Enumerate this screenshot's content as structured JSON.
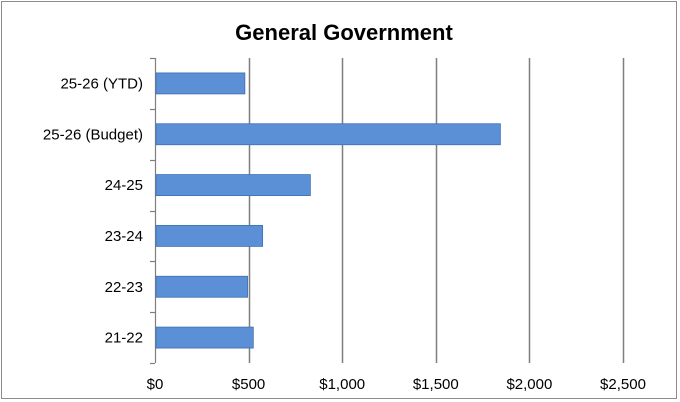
{
  "chart_data": {
    "type": "bar",
    "orientation": "horizontal",
    "title": "General Government",
    "categories": [
      "25-26 (YTD)",
      "25-26 (Budget)",
      "24-25",
      "23-24",
      "22-23",
      "21-22"
    ],
    "values": [
      480,
      1845,
      830,
      575,
      495,
      525
    ],
    "xlim": [
      0,
      2500
    ],
    "xticks": [
      0,
      500,
      1000,
      1500,
      2000,
      2500
    ],
    "xtick_labels": [
      "$0",
      "$500",
      "$1,000",
      "$1,500",
      "$2,000",
      "$2,500"
    ],
    "grid": "vertical",
    "legend": "none",
    "colors": {
      "bar_fill": "#5b8fd6",
      "bar_stroke": "#3f6fb3",
      "grid": "#7f7f7f",
      "axis": "#7f7f7f"
    }
  }
}
